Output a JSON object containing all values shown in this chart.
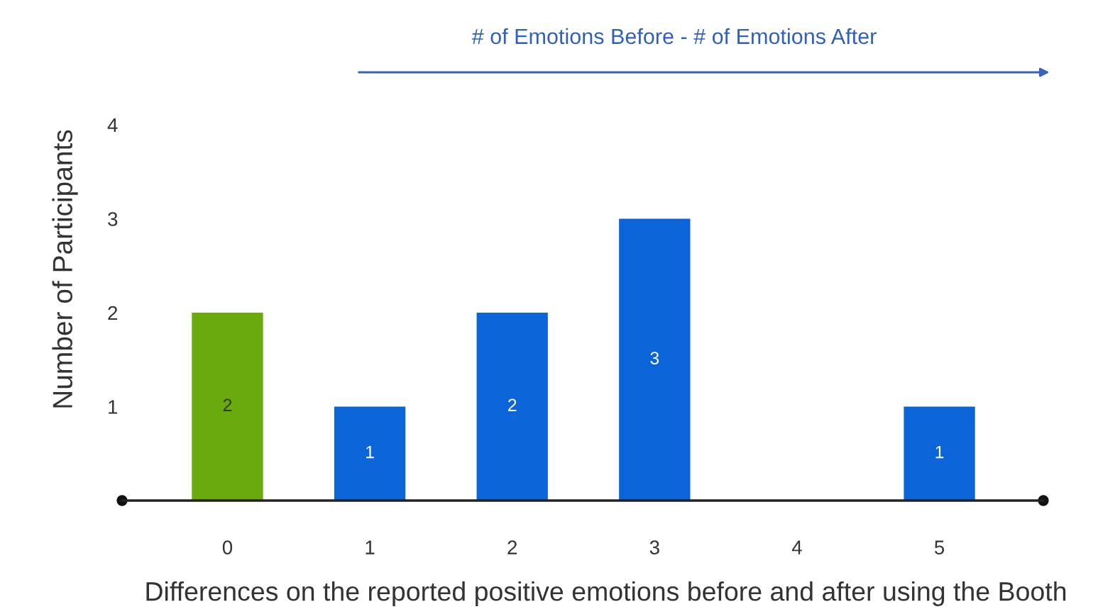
{
  "chart_data": {
    "type": "bar",
    "categories": [
      "0",
      "1",
      "2",
      "3",
      "4",
      "5"
    ],
    "values": [
      2,
      1,
      2,
      3,
      0,
      1
    ],
    "colors": [
      "#6aaa0c",
      "#0b64d8",
      "#0b64d8",
      "#0b64d8",
      "#0b64d8",
      "#0b64d8"
    ],
    "value_labels": [
      "2",
      "1",
      "2",
      "3",
      null,
      "1"
    ],
    "ylim": [
      0,
      4
    ],
    "yticks": [
      1,
      2,
      3,
      4
    ],
    "ylabel": "Number of Participants",
    "xlabel": "Differences on the reported positive emotions before and after using the Booth",
    "annotations": [
      "# of Emotions Before - # of Emotions After"
    ]
  }
}
